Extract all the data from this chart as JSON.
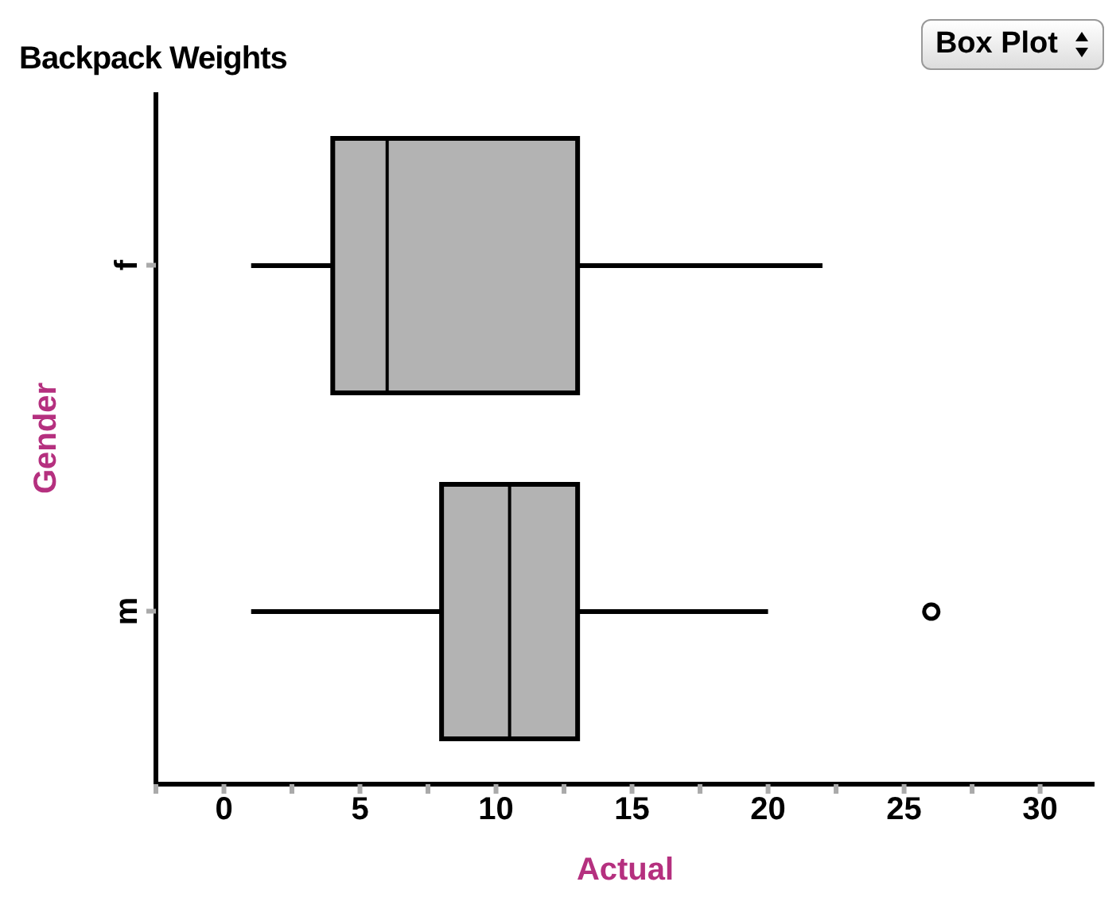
{
  "chart_data": {
    "type": "box",
    "title": "Backpack Weights",
    "xlabel": "Actual",
    "ylabel": "Gender",
    "orientation": "horizontal",
    "categories": [
      "f",
      "m"
    ],
    "boxes": [
      {
        "low": 1,
        "q1": 4,
        "median": 6,
        "q3": 13,
        "high": 22
      },
      {
        "low": 1,
        "q1": 8,
        "median": 10.5,
        "q3": 13,
        "high": 20,
        "outliers": [
          26
        ]
      }
    ],
    "color": "#b3b3b3",
    "xlim": [
      -2.5,
      32
    ],
    "xticks": [
      {
        "value": -2.5,
        "label": null
      },
      0,
      {
        "value": 2.5,
        "label": null
      },
      5,
      {
        "value": 7.5,
        "label": null
      },
      10,
      {
        "value": 12.5,
        "label": null
      },
      15,
      {
        "value": 17.5,
        "label": null
      },
      20,
      {
        "value": 22.5,
        "label": null
      },
      25,
      {
        "value": 27.5,
        "label": null
      },
      30
    ],
    "grid": false,
    "annotations": [
      "Box Plot"
    ]
  }
}
